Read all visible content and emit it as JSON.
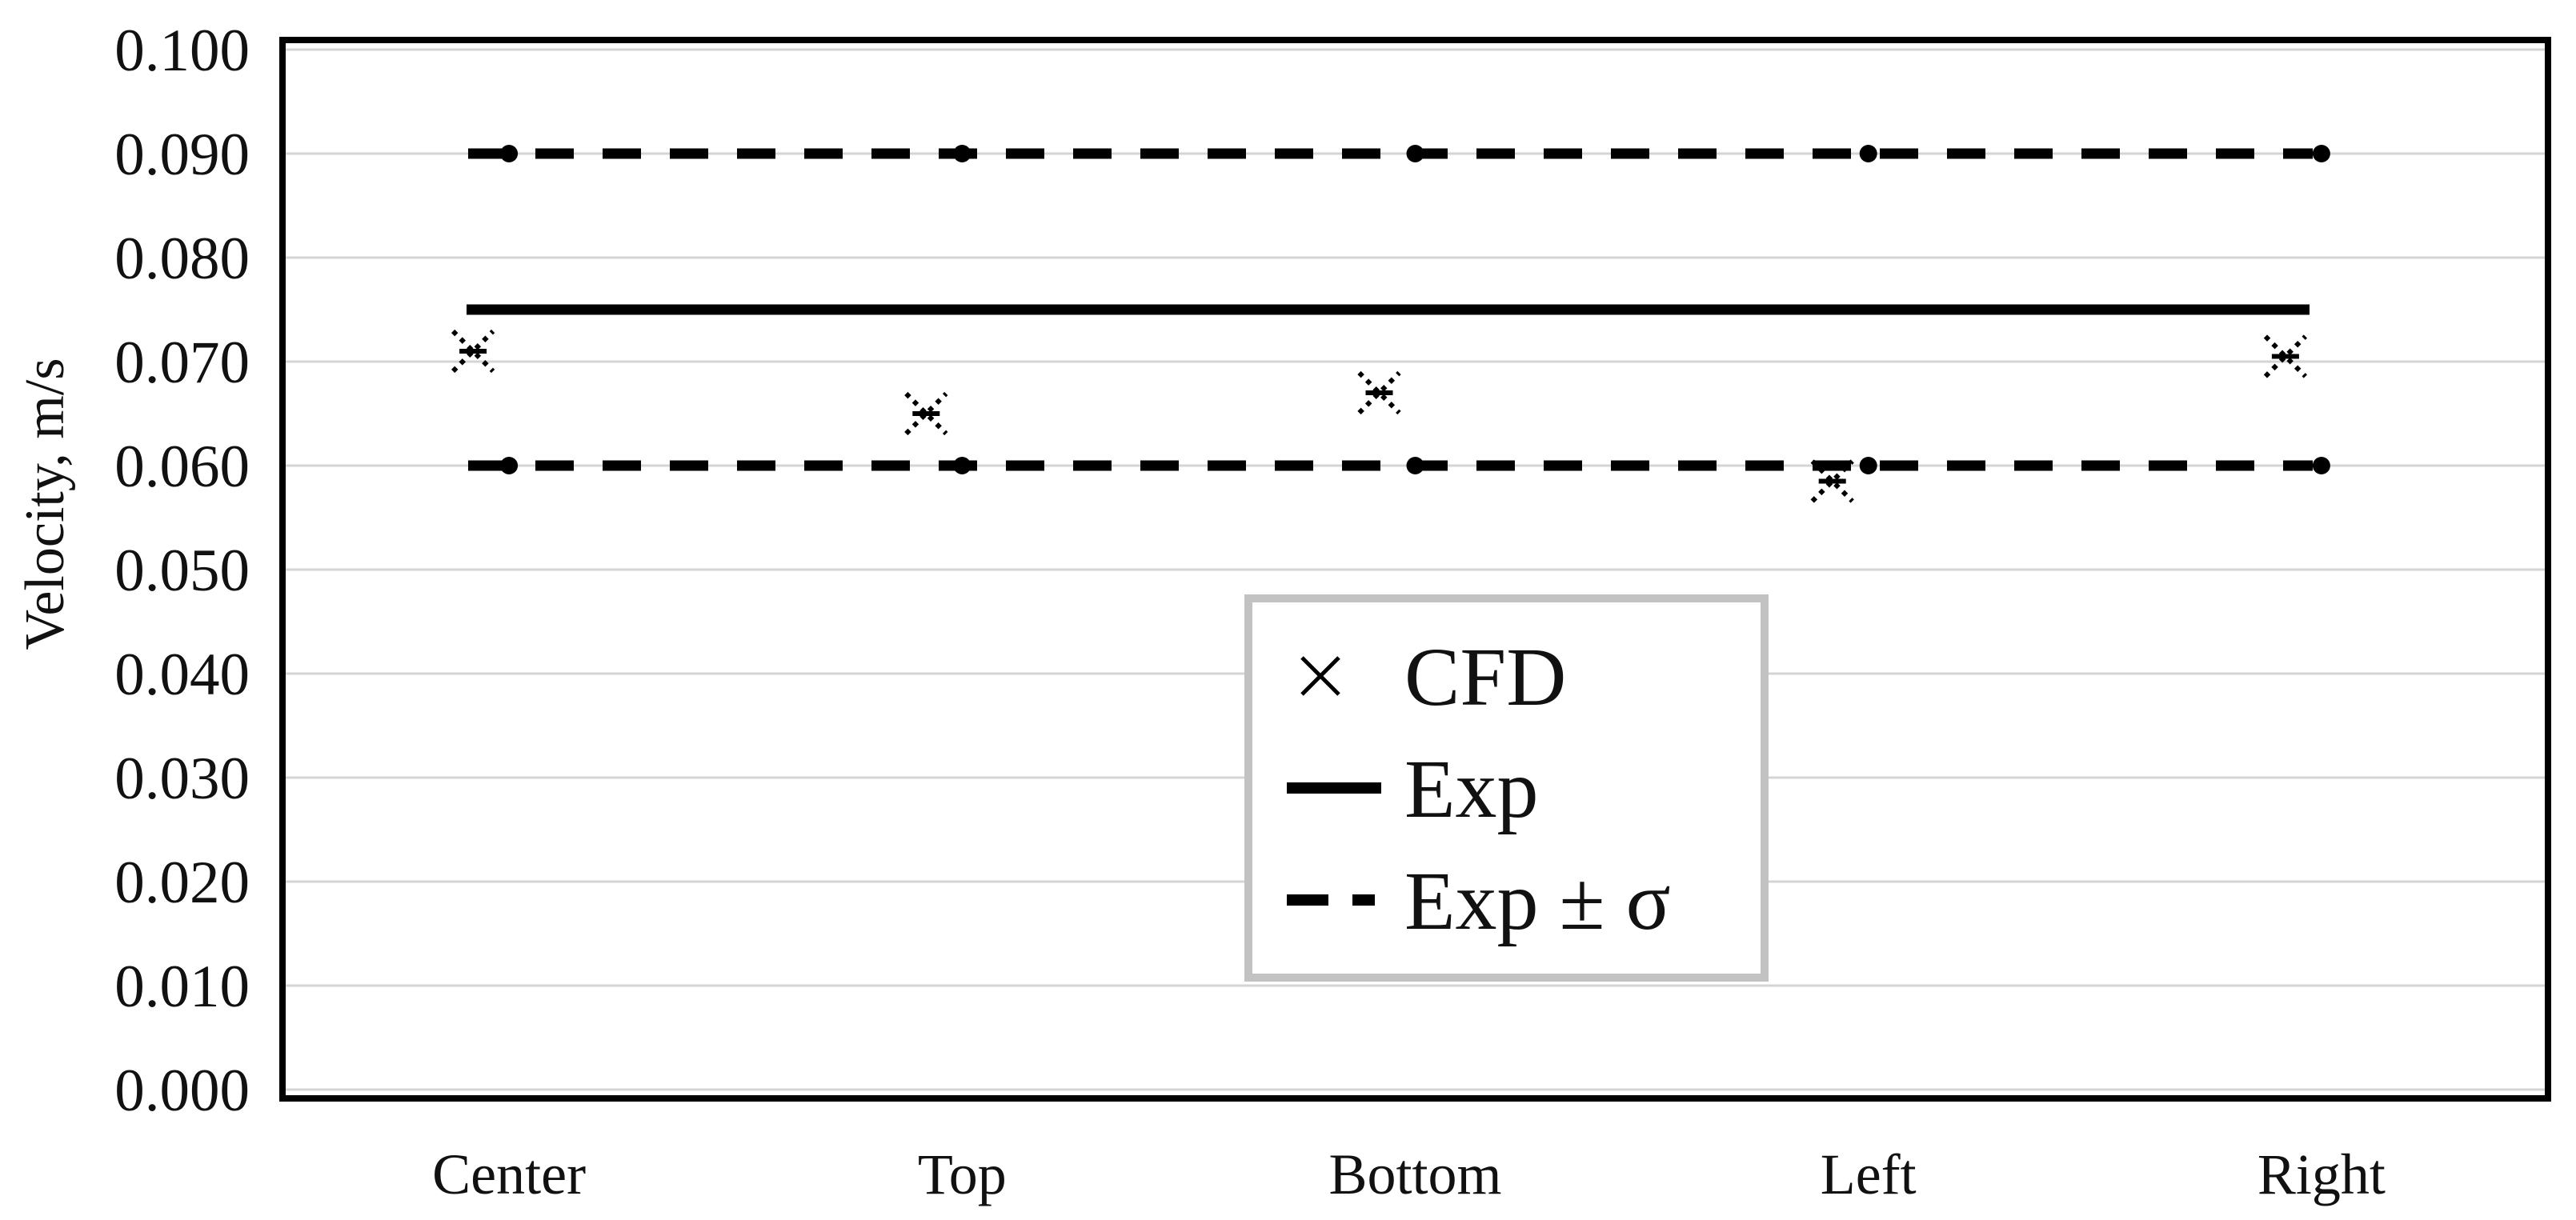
{
  "chart_data": {
    "type": "line",
    "title": "",
    "xlabel": "",
    "ylabel": "Velocity, m/s",
    "categories": [
      "Center",
      "Top",
      "Bottom",
      "Left",
      "Right"
    ],
    "series": [
      {
        "name": "CFD",
        "style": "scatter-x",
        "values": [
          0.071,
          0.065,
          0.067,
          0.0585,
          0.0705
        ]
      },
      {
        "name": "Exp",
        "style": "solid-line",
        "values": [
          0.075,
          0.075,
          0.075,
          0.075,
          0.075
        ]
      },
      {
        "name": "Exp + σ",
        "style": "dashed-line-dots",
        "values": [
          0.09,
          0.09,
          0.09,
          0.09,
          0.09
        ]
      },
      {
        "name": "Exp − σ",
        "style": "dashed-line-dots",
        "values": [
          0.06,
          0.06,
          0.06,
          0.06,
          0.06
        ]
      }
    ],
    "ylim": [
      0.0,
      0.1
    ],
    "ytick_step": 0.01,
    "ytick_labels": [
      "0.000",
      "0.010",
      "0.020",
      "0.030",
      "0.040",
      "0.050",
      "0.060",
      "0.070",
      "0.080",
      "0.090",
      "0.100"
    ],
    "grid": "horizontal-only",
    "legend": {
      "position": "inside-lower-middle",
      "entries": [
        {
          "label": "CFD",
          "marker": "x"
        },
        {
          "label": "Exp",
          "marker": "solid-line"
        },
        {
          "label": "Exp ± σ",
          "marker": "dashed-line"
        }
      ]
    },
    "colors": {
      "series": "#000000",
      "text": "#111111",
      "gridline": "#d4d4d4",
      "plot_border": "#000000",
      "legend_border": "#c2c2c2",
      "background": "#ffffff"
    }
  }
}
